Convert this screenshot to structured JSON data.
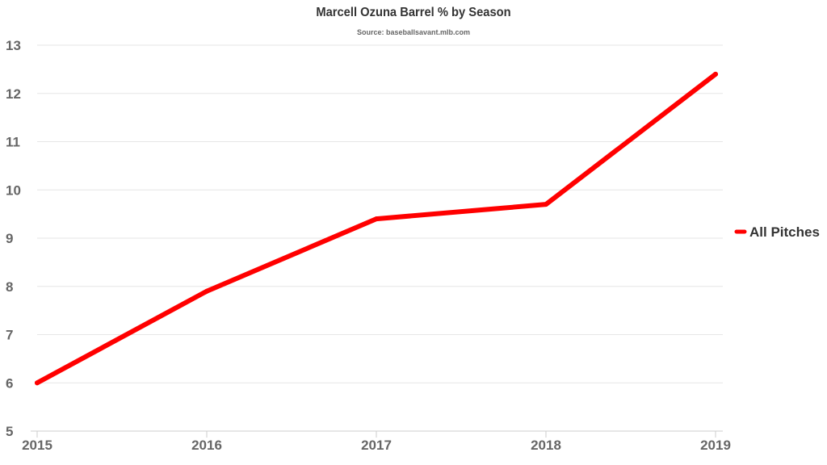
{
  "chart_data": {
    "type": "line",
    "title": "Marcell Ozuna Barrel % by Season",
    "subtitle": "Source: baseballsavant.mlb.com",
    "xlabel": "",
    "ylabel": "",
    "x": [
      2015,
      2016,
      2017,
      2018,
      2019
    ],
    "x_tick_labels": [
      "2015",
      "2016",
      "2017",
      "2018",
      "2019"
    ],
    "ylim": [
      5,
      13
    ],
    "y_ticks": [
      5,
      6,
      7,
      8,
      9,
      10,
      11,
      12,
      13
    ],
    "y_tick_labels": [
      "5",
      "6",
      "7",
      "8",
      "9",
      "10",
      "11",
      "12",
      "13"
    ],
    "grid": true,
    "legend_position": "right",
    "series": [
      {
        "name": "All Pitches",
        "color": "#ff0000",
        "values": [
          6.0,
          7.9,
          9.4,
          9.7,
          12.4
        ]
      }
    ]
  }
}
